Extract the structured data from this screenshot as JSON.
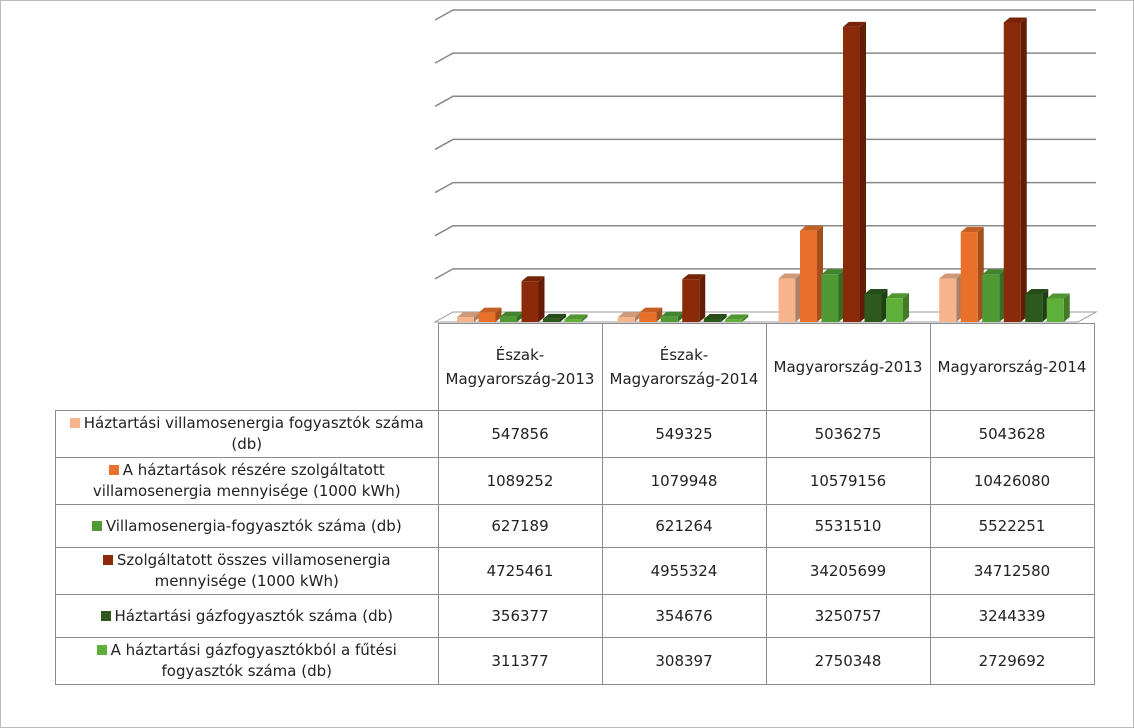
{
  "chart_data": {
    "type": "bar3d",
    "categories": [
      "Észak-Magyarország-2013",
      "Észak-Magyarország-2014",
      "Magyarország-2013",
      "Magyarország-2014"
    ],
    "series": [
      {
        "name": "Háztartási villamosenergia fogyasztók száma (db)",
        "color": "#f6b48c",
        "values": [
          547856,
          549325,
          5036275,
          5043628
        ]
      },
      {
        "name": "A háztartások részére szolgáltatott villamosenergia mennyisége (1000 kWh)",
        "color": "#e8702a",
        "values": [
          1089252,
          1079948,
          10579156,
          10426080
        ]
      },
      {
        "name": "Villamosenergia-fogyasztók száma (db)",
        "color": "#4f9a35",
        "values": [
          627189,
          621264,
          5531510,
          5522251
        ]
      },
      {
        "name": "Szolgáltatott összes villamosenergia mennyisége (1000 kWh)",
        "color": "#8a2a08",
        "values": [
          4725461,
          4955324,
          34205699,
          34712580
        ]
      },
      {
        "name": "Háztartási gázfogyasztók száma (db)",
        "color": "#2d5a1c",
        "values": [
          356377,
          354676,
          3250757,
          3244339
        ]
      },
      {
        "name": "A háztartási gázfogyasztókból a fűtési fogyasztók száma (db)",
        "color": "#5fb03a",
        "values": [
          311377,
          308397,
          2750348,
          2729692
        ]
      }
    ],
    "ylim": [
      0,
      35000000
    ],
    "yticks": [
      0,
      5000000,
      10000000,
      15000000,
      20000000,
      25000000,
      30000000,
      35000000
    ],
    "grid": true
  }
}
